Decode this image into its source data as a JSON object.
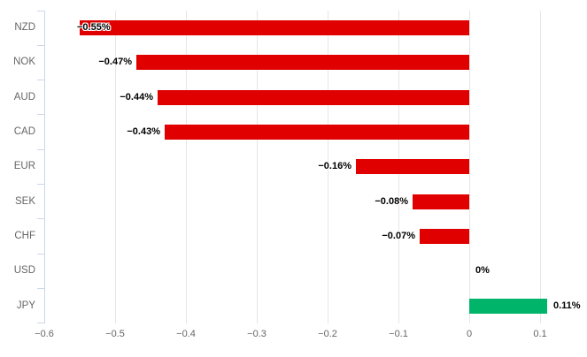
{
  "chart_data": {
    "type": "bar",
    "orientation": "horizontal",
    "title": "",
    "xlabel": "",
    "ylabel": "",
    "categories": [
      "NZD",
      "NOK",
      "AUD",
      "CAD",
      "EUR",
      "SEK",
      "CHF",
      "USD",
      "JPY"
    ],
    "values": [
      -0.55,
      -0.47,
      -0.44,
      -0.43,
      -0.16,
      -0.08,
      -0.07,
      0,
      0.11
    ],
    "value_labels": [
      "−0.55%",
      "−0.47%",
      "−0.44%",
      "−0.43%",
      "−0.16%",
      "−0.08%",
      "−0.07%",
      "0%",
      "0.11%"
    ],
    "x_ticks": [
      -0.6,
      -0.5,
      -0.4,
      -0.3,
      -0.2,
      -0.1,
      0,
      0.1
    ],
    "x_tick_labels": [
      "−0.6",
      "−0.5",
      "−0.4",
      "−0.3",
      "−0.2",
      "−0.1",
      "0",
      "0.1"
    ],
    "xlim": [
      -0.6,
      0.166
    ],
    "grid": true,
    "legend": "none",
    "colors": {
      "negative": "#e00000",
      "positive": "#00b56a"
    }
  },
  "style": {
    "background": "#ffffff",
    "gridline_color": "#e6e6e6",
    "axis_line_color": "#ccd6eb",
    "category_label_color": "#666666",
    "axis_label_color": "#666666",
    "value_label_color": "#000000"
  }
}
